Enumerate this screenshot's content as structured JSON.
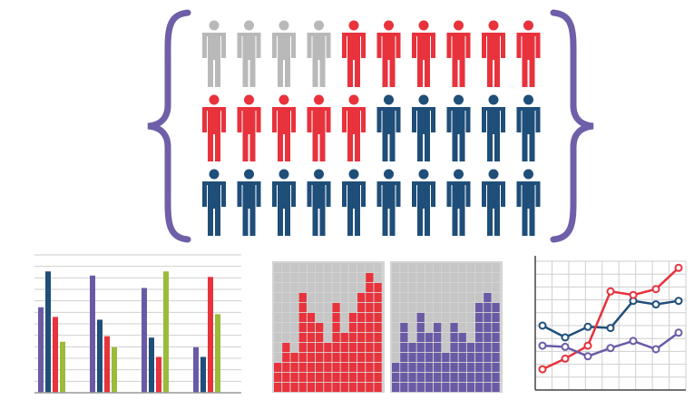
{
  "colors": {
    "gray": "#b9b9b9",
    "red": "#e8323c",
    "navy": "#1f4e79",
    "purple": "#6a5aa6",
    "green": "#9bbb3b",
    "brace": "#6f5fa8",
    "grid": "#cfcfcf",
    "panel": "#d4d4d4"
  },
  "people_rows": [
    [
      "gray",
      "gray",
      "gray",
      "gray",
      "red",
      "red",
      "red",
      "red",
      "red",
      "red"
    ],
    [
      "red",
      "red",
      "red",
      "red",
      "red",
      "navy",
      "navy",
      "navy",
      "navy",
      "navy"
    ],
    [
      "navy",
      "navy",
      "navy",
      "navy",
      "navy",
      "navy",
      "navy",
      "navy",
      "navy",
      "navy"
    ]
  ],
  "bar_chart": {
    "type": "bar",
    "groups": [
      {
        "values": [
          0.62,
          0.88,
          0.55,
          0.37
        ]
      },
      {
        "values": [
          0.85,
          0.53,
          0.41,
          0.33
        ]
      },
      {
        "values": [
          0.76,
          0.4,
          0.26,
          0.88
        ]
      },
      {
        "values": [
          0.33,
          0.26,
          0.84,
          0.57
        ]
      }
    ],
    "series_colors": [
      "purple",
      "navy",
      "red",
      "green"
    ]
  },
  "waffle_red": {
    "columns": 13,
    "rows": 13,
    "heights": [
      3,
      5,
      4,
      10,
      8,
      7,
      5,
      9,
      6,
      8,
      10,
      12,
      11
    ]
  },
  "waffle_purple": {
    "columns": 13,
    "rows": 13,
    "heights": [
      3,
      7,
      5,
      8,
      6,
      7,
      4,
      7,
      6,
      5,
      9,
      10,
      9
    ]
  },
  "line_chart": {
    "type": "line",
    "x": [
      0,
      1,
      2,
      3,
      4,
      5,
      6
    ],
    "series": [
      {
        "color": "navy",
        "values": [
          0.5,
          0.4,
          0.49,
          0.48,
          0.71,
          0.68,
          0.71
        ]
      },
      {
        "color": "red",
        "values": [
          0.13,
          0.22,
          0.33,
          0.79,
          0.76,
          0.81,
          0.99
        ]
      },
      {
        "color": "purple",
        "values": [
          0.33,
          0.32,
          0.24,
          0.31,
          0.37,
          0.3,
          0.44
        ]
      }
    ]
  }
}
